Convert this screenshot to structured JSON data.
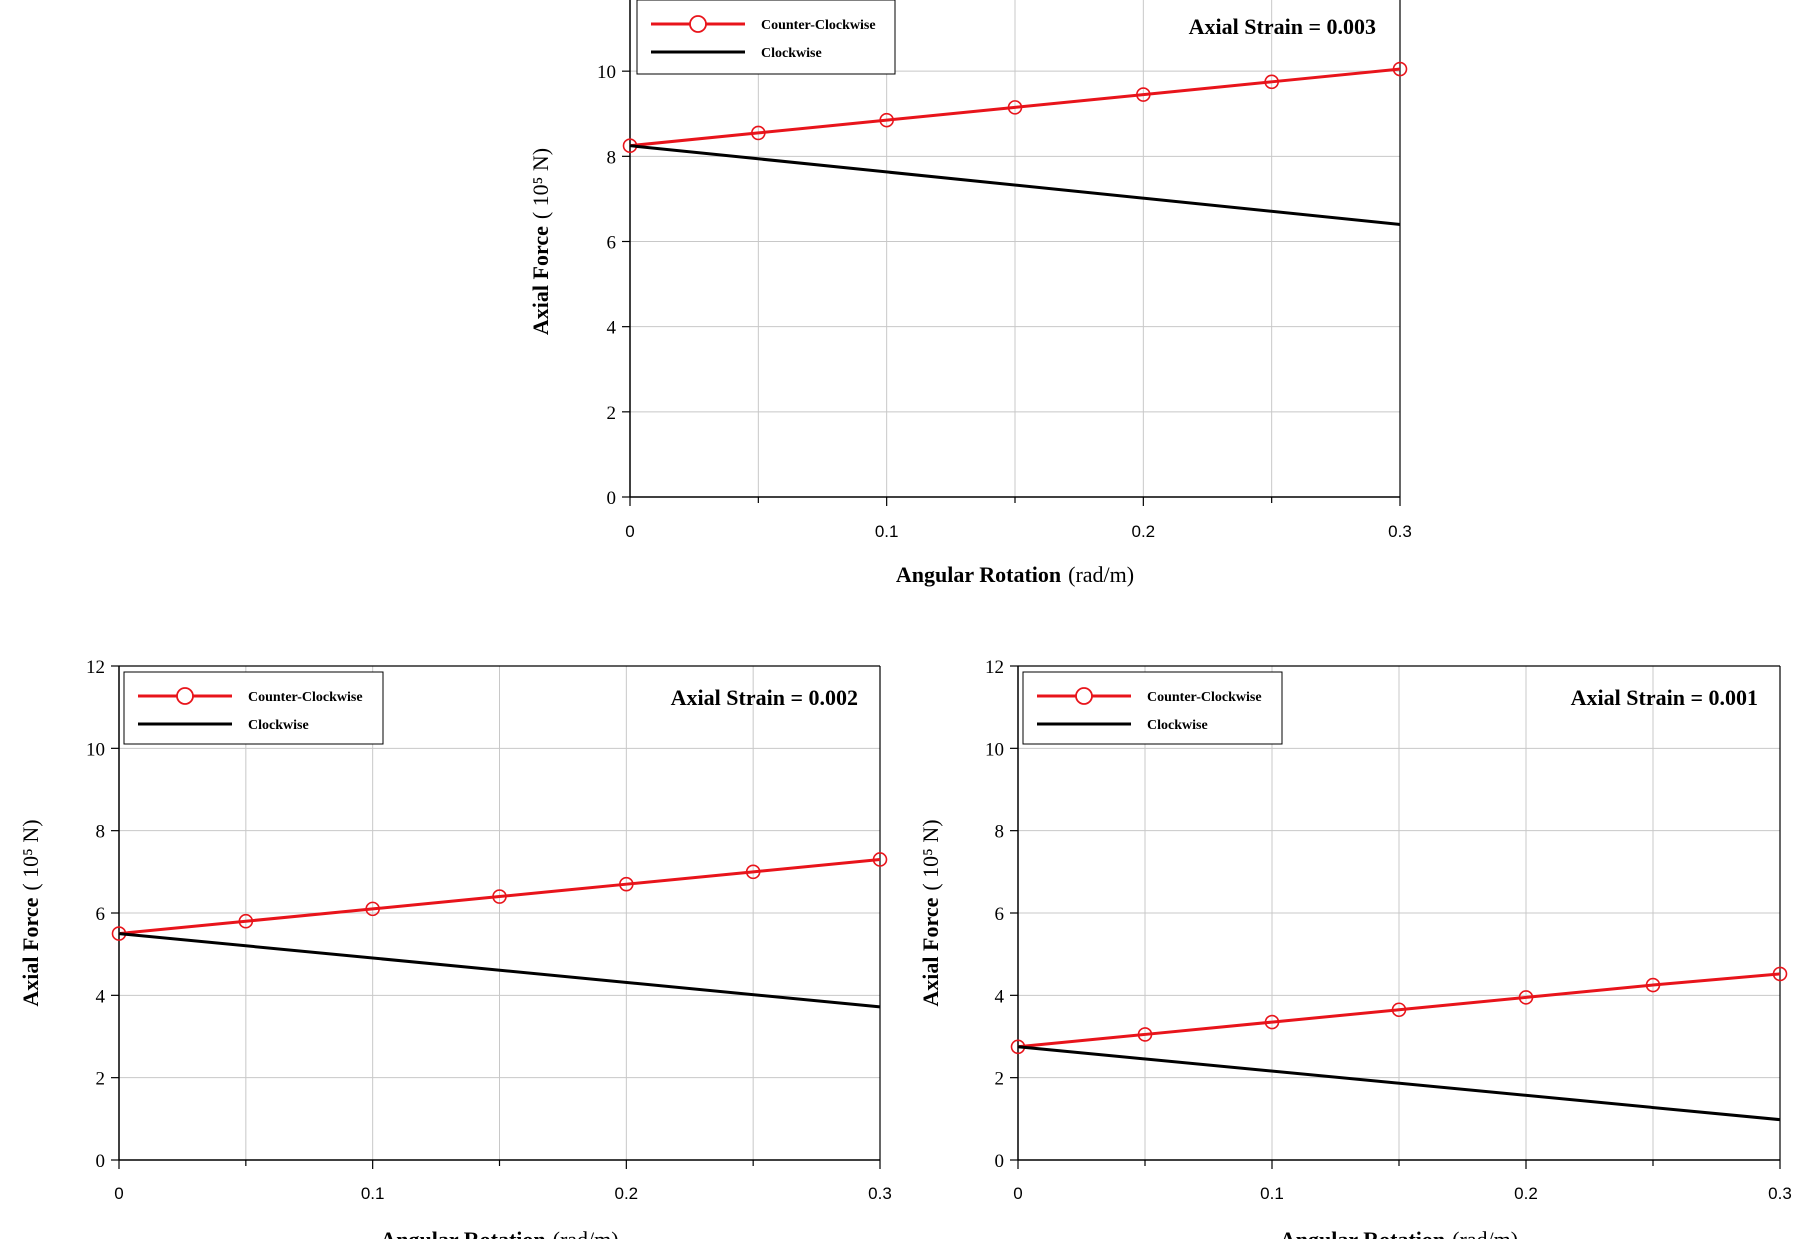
{
  "colors": {
    "counter_clockwise": "#e8141b",
    "clockwise": "#000000",
    "grid": "#c8c8c8"
  },
  "chart_data": [
    {
      "type": "line",
      "annotation": "Axial Strain = 0.003",
      "xlabel_bold": "Angular Rotation",
      "xlabel_unit": "(rad/m)",
      "ylabel_bold": "Axial Force",
      "ylabel_unit": "( 10⁵ N)",
      "xlim": [
        0,
        0.3
      ],
      "ylim": [
        0,
        12
      ],
      "xticks": [
        0,
        0.1,
        0.2,
        0.3
      ],
      "xtick_labels": [
        "0",
        "0.1",
        "0.2",
        "0.3"
      ],
      "yticks": [
        0,
        2,
        4,
        6,
        8,
        10
      ],
      "ytick_labels": [
        "0",
        "2",
        "4",
        "6",
        "8",
        "10"
      ],
      "grid": true,
      "legend_position": "top-left",
      "series": [
        {
          "name": "Counter-Clockwise",
          "marker": "circle",
          "x": [
            0,
            0.05,
            0.1,
            0.15,
            0.2,
            0.25,
            0.3
          ],
          "y": [
            8.25,
            8.55,
            8.85,
            9.15,
            9.45,
            9.75,
            10.05
          ]
        },
        {
          "name": "Clockwise",
          "marker": "none",
          "x": [
            0,
            0.3
          ],
          "y": [
            8.25,
            6.4
          ]
        }
      ]
    },
    {
      "type": "line",
      "annotation": "Axial Strain = 0.002",
      "xlabel_bold": "Angular Rotation",
      "xlabel_unit": "(rad/m)",
      "ylabel_bold": "Axial Force",
      "ylabel_unit": "( 10⁵ N)",
      "xlim": [
        0,
        0.3
      ],
      "ylim": [
        0,
        12
      ],
      "xticks": [
        0,
        0.1,
        0.2,
        0.3
      ],
      "xtick_labels": [
        "0",
        "0.1",
        "0.2",
        "0.3"
      ],
      "yticks": [
        0,
        2,
        4,
        6,
        8,
        10,
        12
      ],
      "ytick_labels": [
        "0",
        "2",
        "4",
        "6",
        "8",
        "10",
        "12"
      ],
      "grid": true,
      "legend_position": "top-left",
      "series": [
        {
          "name": "Counter-Clockwise",
          "marker": "circle",
          "x": [
            0,
            0.05,
            0.1,
            0.15,
            0.2,
            0.25,
            0.3
          ],
          "y": [
            5.5,
            5.8,
            6.1,
            6.4,
            6.7,
            7.0,
            7.3
          ]
        },
        {
          "name": "Clockwise",
          "marker": "none",
          "x": [
            0,
            0.3
          ],
          "y": [
            5.5,
            3.72
          ]
        }
      ]
    },
    {
      "type": "line",
      "annotation": "Axial Strain = 0.001",
      "xlabel_bold": "Angular Rotation",
      "xlabel_unit": "(rad/m)",
      "ylabel_bold": "Axial Force",
      "ylabel_unit": "( 10⁵ N)",
      "xlim": [
        0,
        0.3
      ],
      "ylim": [
        0,
        12
      ],
      "xticks": [
        0,
        0.1,
        0.2,
        0.3
      ],
      "xtick_labels": [
        "0",
        "0.1",
        "0.2",
        "0.3"
      ],
      "yticks": [
        0,
        2,
        4,
        6,
        8,
        10,
        12
      ],
      "ytick_labels": [
        "0",
        "2",
        "4",
        "6",
        "8",
        "10",
        "12"
      ],
      "grid": true,
      "legend_position": "top-left",
      "series": [
        {
          "name": "Counter-Clockwise",
          "marker": "circle",
          "x": [
            0,
            0.05,
            0.1,
            0.15,
            0.2,
            0.25,
            0.3
          ],
          "y": [
            2.75,
            3.05,
            3.35,
            3.65,
            3.95,
            4.25,
            4.52
          ]
        },
        {
          "name": "Clockwise",
          "marker": "none",
          "x": [
            0,
            0.3
          ],
          "y": [
            2.75,
            0.98
          ]
        }
      ]
    }
  ]
}
